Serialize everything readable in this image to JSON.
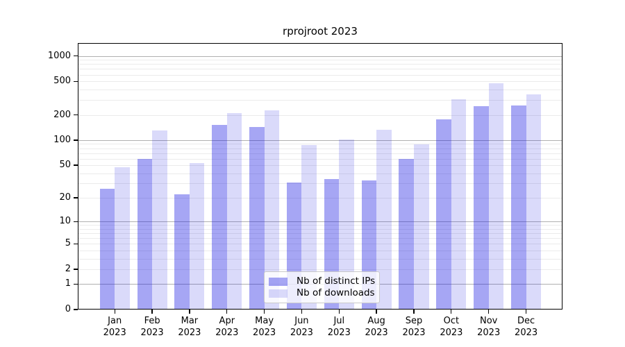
{
  "chart_data": {
    "type": "bar",
    "title": "rprojroot 2023",
    "months": [
      "Jan",
      "Feb",
      "Mar",
      "Apr",
      "May",
      "Jun",
      "Jul",
      "Aug",
      "Sep",
      "Oct",
      "Nov",
      "Dec"
    ],
    "year": "2023",
    "series": [
      {
        "name": "Nb of distinct IPs",
        "color": "#a6a6f4",
        "fill": "rgba(22,22,226,0.38)",
        "values": [
          26,
          59,
          22,
          151,
          143,
          31,
          34,
          33,
          59,
          178,
          255,
          260
        ]
      },
      {
        "name": "Nb of downloads",
        "color": "#d9d9fa",
        "fill": "rgba(22,22,226,0.16)",
        "values": [
          47,
          130,
          53,
          210,
          225,
          87,
          101,
          133,
          89,
          308,
          474,
          350
        ]
      }
    ],
    "y_ticks": [
      1000,
      500,
      200,
      100,
      50,
      20,
      10,
      5,
      2,
      1,
      0
    ],
    "y_scale": "log1p",
    "ylim": [
      0,
      1400
    ],
    "xlabel": "",
    "ylabel": "",
    "grid": "horizontal, log minors light gray, decades gray",
    "grid_major_color": "#b0b0b0",
    "grid_minor_color": "#ebebeb",
    "legend_position": "inside bottom-center"
  }
}
